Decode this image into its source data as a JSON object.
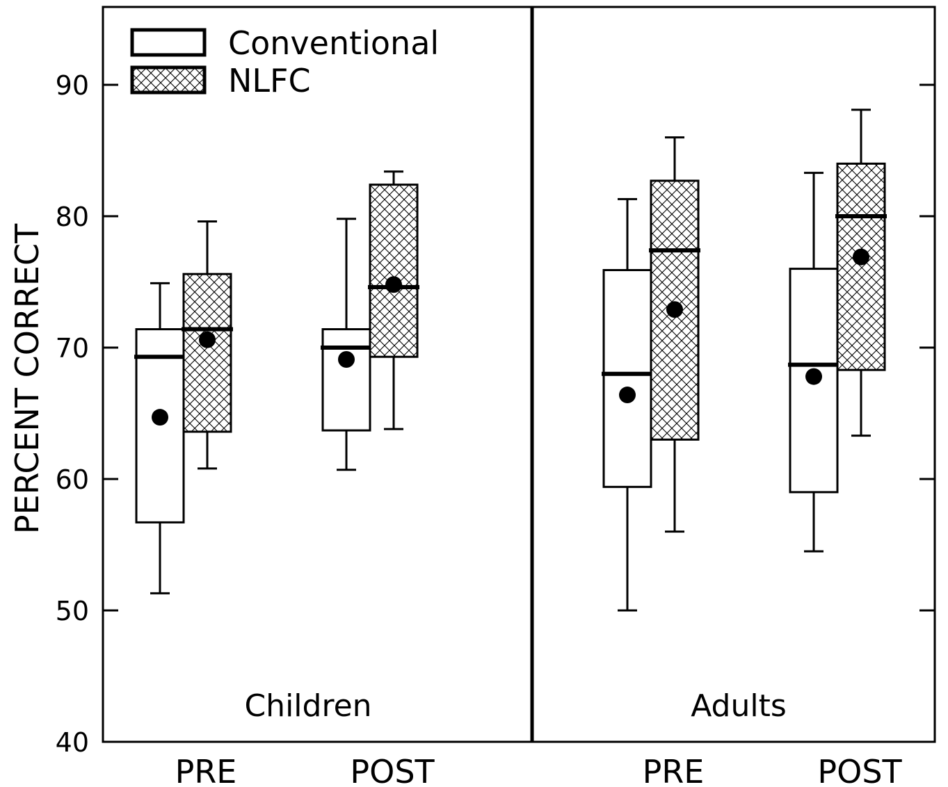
{
  "chart_data": {
    "type": "box",
    "ylabel": "PERCENT CORRECT",
    "ylim": [
      40,
      95
    ],
    "y_ticks": [
      40,
      50,
      60,
      70,
      80,
      90
    ],
    "grid": false,
    "legend": {
      "placement": "top-left",
      "entries": [
        {
          "label": "Conventional",
          "fill": "none"
        },
        {
          "label": "NLFC",
          "fill": "crosshatch"
        }
      ]
    },
    "panels": [
      {
        "name": "Children",
        "groups": [
          {
            "label": "PRE",
            "boxes": [
              {
                "series": "Conventional",
                "whisker_low": 51.3,
                "q1": 56.7,
                "median": 69.3,
                "q3": 71.4,
                "whisker_high": 74.9,
                "mean": 64.7
              },
              {
                "series": "NLFC",
                "whisker_low": 60.8,
                "q1": 63.6,
                "median": 71.4,
                "q3": 75.6,
                "whisker_high": 79.6,
                "mean": 70.6
              }
            ]
          },
          {
            "label": "POST",
            "boxes": [
              {
                "series": "Conventional",
                "whisker_low": 60.7,
                "q1": 63.7,
                "median": 70.0,
                "q3": 71.4,
                "whisker_high": 79.8,
                "mean": 69.1
              },
              {
                "series": "NLFC",
                "whisker_low": 63.8,
                "q1": 69.3,
                "median": 74.6,
                "q3": 82.4,
                "whisker_high": 83.4,
                "mean": 74.8
              }
            ]
          }
        ]
      },
      {
        "name": "Adults",
        "groups": [
          {
            "label": "PRE",
            "boxes": [
              {
                "series": "Conventional",
                "whisker_low": 50.0,
                "q1": 59.4,
                "median": 68.0,
                "q3": 75.9,
                "whisker_high": 81.3,
                "mean": 66.4
              },
              {
                "series": "NLFC",
                "whisker_low": 56.0,
                "q1": 63.0,
                "median": 77.4,
                "q3": 82.7,
                "whisker_high": 86.0,
                "mean": 72.9
              }
            ]
          },
          {
            "label": "POST",
            "boxes": [
              {
                "series": "Conventional",
                "whisker_low": 54.5,
                "q1": 59.0,
                "median": 68.7,
                "q3": 76.0,
                "whisker_high": 83.3,
                "mean": 67.8
              },
              {
                "series": "NLFC",
                "whisker_low": 63.3,
                "q1": 68.3,
                "median": 80.0,
                "q3": 84.0,
                "whisker_high": 88.1,
                "mean": 76.9
              }
            ]
          }
        ]
      }
    ]
  }
}
